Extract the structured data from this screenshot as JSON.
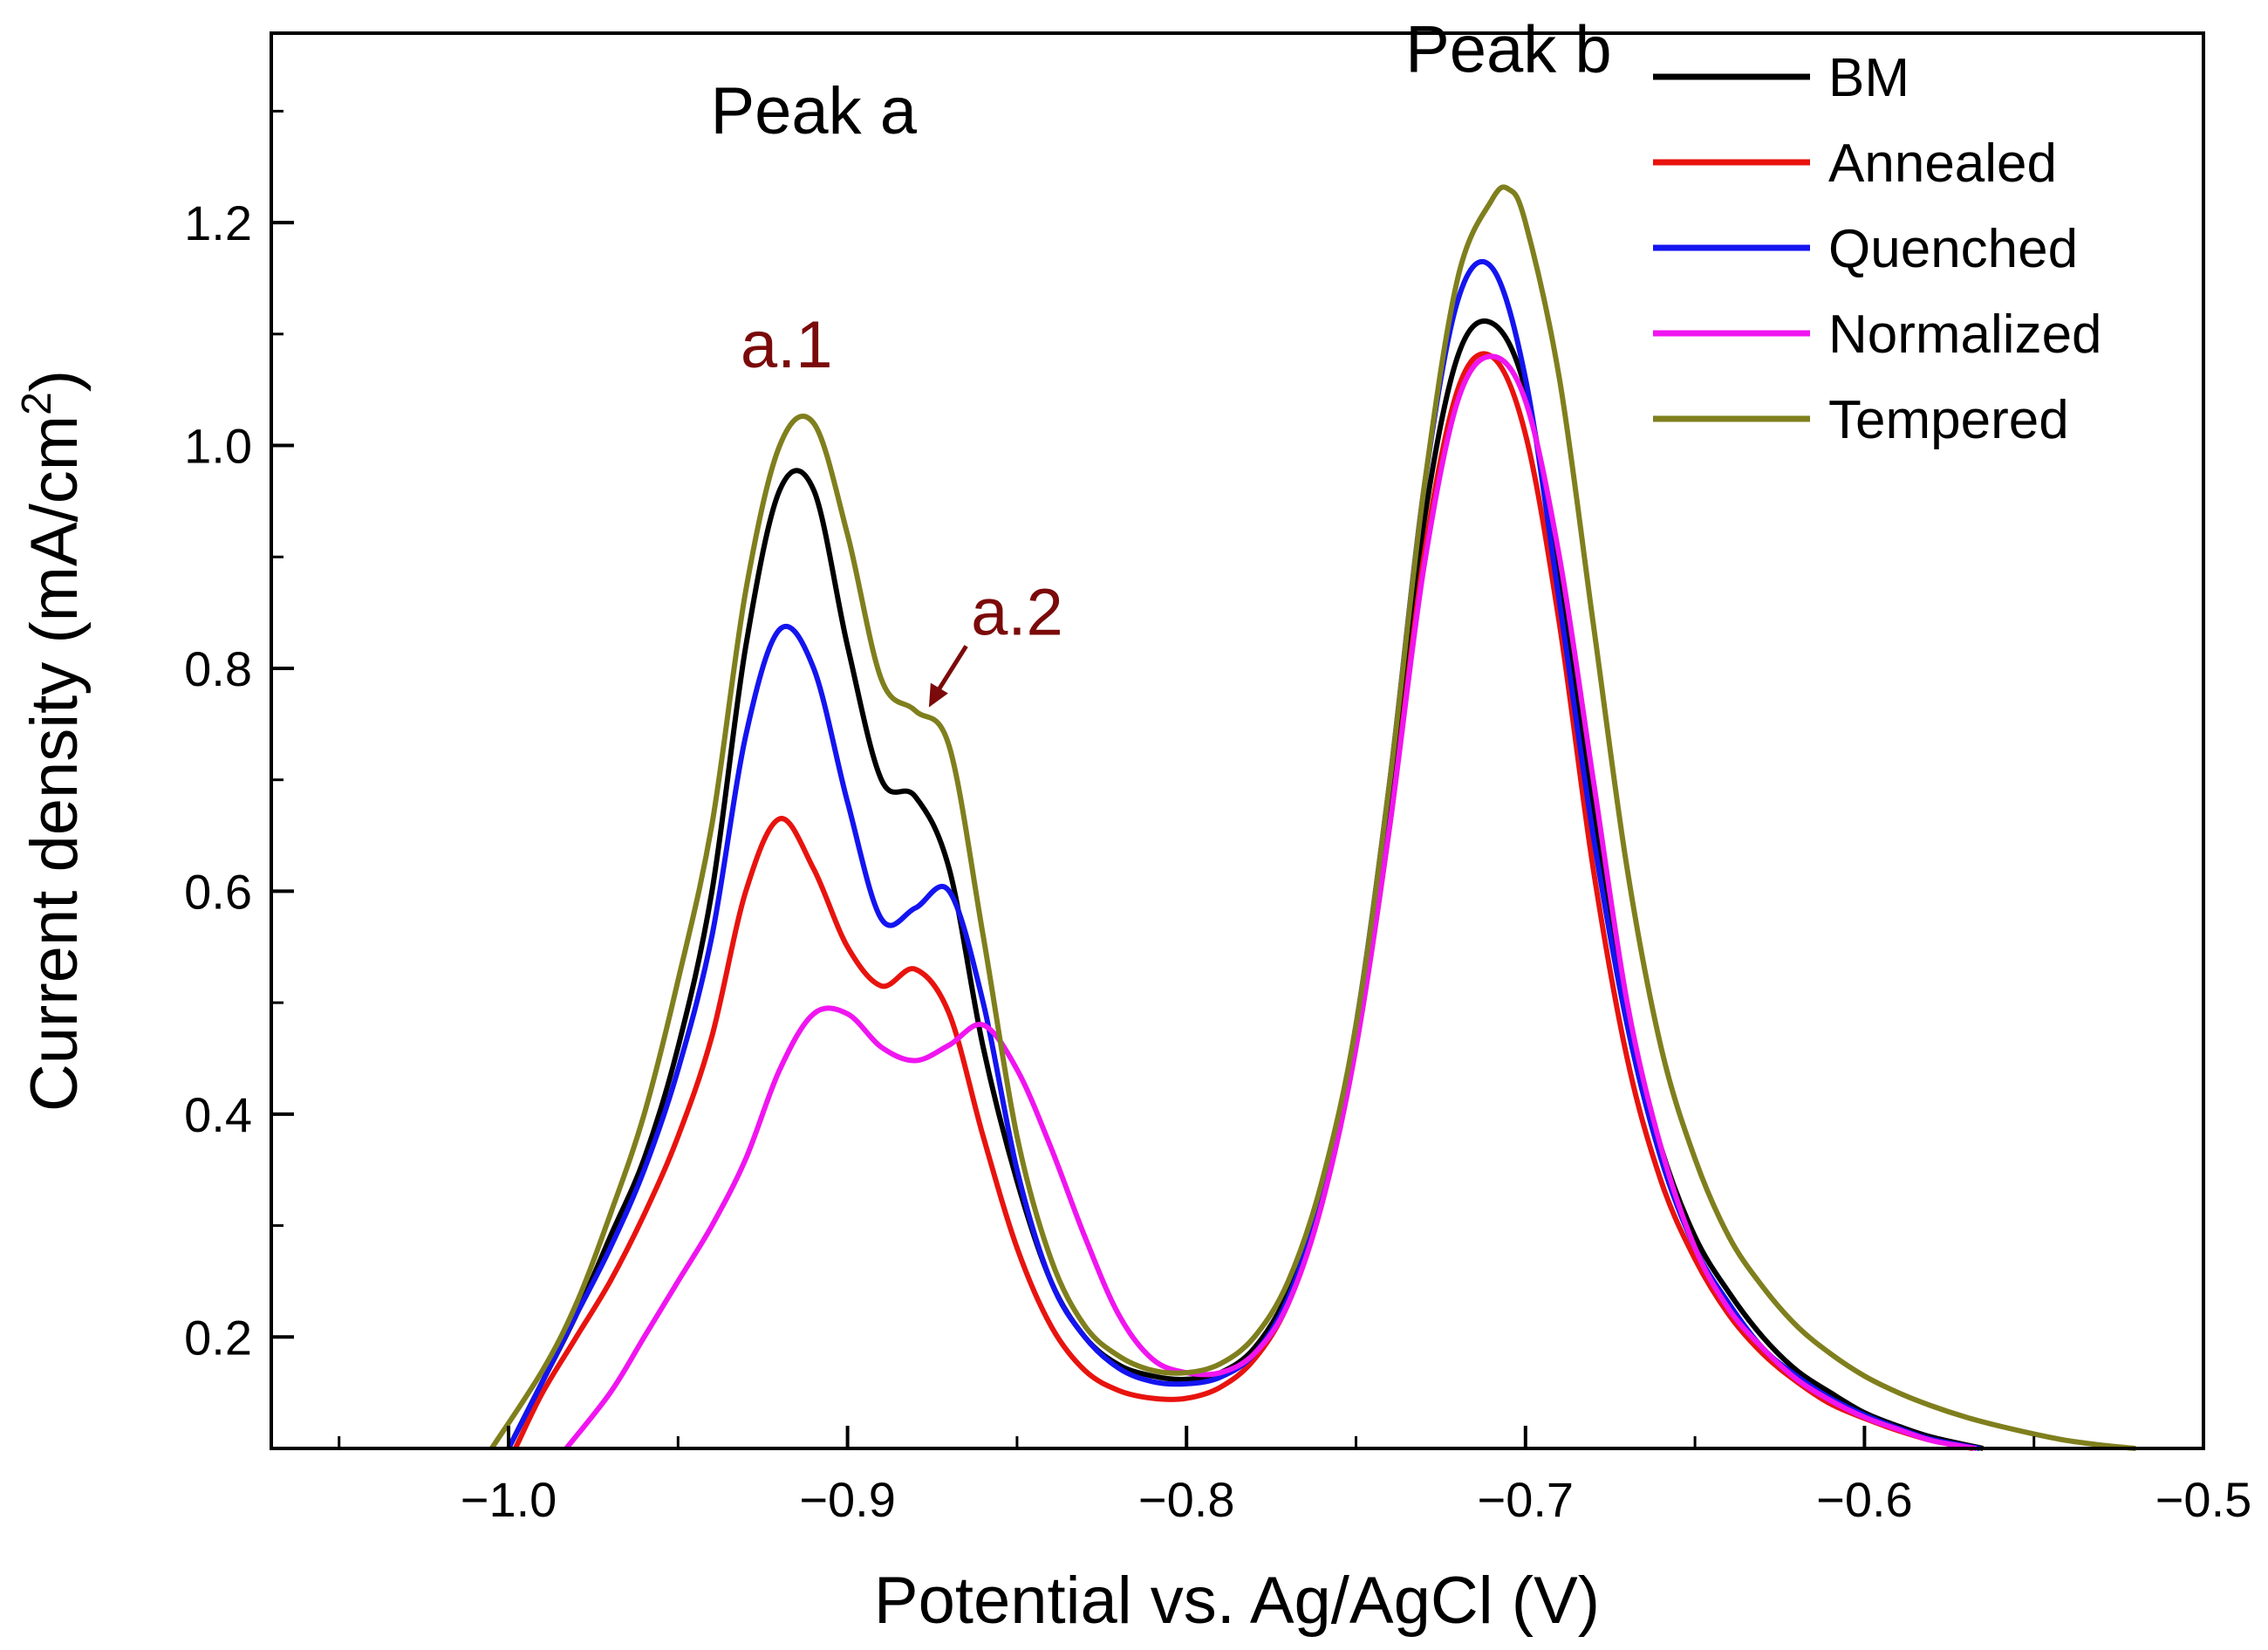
{
  "chart_data": {
    "type": "line",
    "title": "",
    "xlabel": "Potential vs. Ag/AgCl (V)",
    "ylabel_main": "Current density (mA/cm",
    "ylabel_sup": "2",
    "ylabel_close": ")",
    "xlim": [
      -1.07,
      -0.5
    ],
    "ylim": [
      0.1,
      1.37
    ],
    "x_ticks": [
      -1.0,
      -0.9,
      -0.8,
      -0.7,
      -0.6,
      -0.5
    ],
    "x_tick_labels": [
      "−1.0",
      "−0.9",
      "−0.8",
      "−0.7",
      "−0.6",
      "−0.5"
    ],
    "y_ticks": [
      0.2,
      0.4,
      0.6,
      0.8,
      1.0,
      1.2
    ],
    "y_tick_labels": [
      "0.2",
      "0.4",
      "0.6",
      "0.8",
      "1.0",
      "1.2"
    ],
    "grid": false,
    "legend_position": "top-right",
    "annotations": [
      {
        "text": "Peak a",
        "x": -0.91,
        "y": 1.28,
        "color": "#000000"
      },
      {
        "text": "Peak b",
        "x": -0.705,
        "y": 1.335,
        "color": "#000000"
      },
      {
        "text": "a.1",
        "x": -0.918,
        "y": 1.07,
        "color": "#7b0a0a"
      },
      {
        "text": "a.2",
        "x": -0.85,
        "y": 0.83,
        "color": "#7b0a0a"
      }
    ],
    "series": [
      {
        "name": "BM",
        "color": "#000000",
        "points": [
          [
            -1.0,
            0.1
          ],
          [
            -0.99,
            0.16
          ],
          [
            -0.98,
            0.22
          ],
          [
            -0.97,
            0.29
          ],
          [
            -0.96,
            0.36
          ],
          [
            -0.95,
            0.46
          ],
          [
            -0.94,
            0.6
          ],
          [
            -0.93,
            0.82
          ],
          [
            -0.92,
            0.96
          ],
          [
            -0.91,
            0.96
          ],
          [
            -0.9,
            0.82
          ],
          [
            -0.89,
            0.7
          ],
          [
            -0.88,
            0.685
          ],
          [
            -0.87,
            0.62
          ],
          [
            -0.86,
            0.46
          ],
          [
            -0.85,
            0.34
          ],
          [
            -0.84,
            0.25
          ],
          [
            -0.83,
            0.2
          ],
          [
            -0.82,
            0.175
          ],
          [
            -0.81,
            0.165
          ],
          [
            -0.8,
            0.162
          ],
          [
            -0.79,
            0.168
          ],
          [
            -0.78,
            0.19
          ],
          [
            -0.77,
            0.24
          ],
          [
            -0.76,
            0.33
          ],
          [
            -0.75,
            0.47
          ],
          [
            -0.74,
            0.68
          ],
          [
            -0.73,
            0.93
          ],
          [
            -0.72,
            1.08
          ],
          [
            -0.71,
            1.11
          ],
          [
            -0.7,
            1.05
          ],
          [
            -0.69,
            0.88
          ],
          [
            -0.68,
            0.67
          ],
          [
            -0.67,
            0.49
          ],
          [
            -0.66,
            0.37
          ],
          [
            -0.65,
            0.29
          ],
          [
            -0.64,
            0.24
          ],
          [
            -0.63,
            0.2
          ],
          [
            -0.62,
            0.17
          ],
          [
            -0.61,
            0.15
          ],
          [
            -0.6,
            0.132
          ],
          [
            -0.59,
            0.12
          ],
          [
            -0.58,
            0.11
          ],
          [
            -0.565,
            0.1
          ]
        ]
      },
      {
        "name": "Annealed",
        "color": "#e8130e",
        "points": [
          [
            -0.998,
            0.1
          ],
          [
            -0.99,
            0.15
          ],
          [
            -0.98,
            0.2
          ],
          [
            -0.97,
            0.25
          ],
          [
            -0.96,
            0.31
          ],
          [
            -0.95,
            0.38
          ],
          [
            -0.94,
            0.47
          ],
          [
            -0.93,
            0.6
          ],
          [
            -0.92,
            0.665
          ],
          [
            -0.91,
            0.62
          ],
          [
            -0.9,
            0.55
          ],
          [
            -0.89,
            0.515
          ],
          [
            -0.88,
            0.53
          ],
          [
            -0.87,
            0.49
          ],
          [
            -0.86,
            0.38
          ],
          [
            -0.85,
            0.28
          ],
          [
            -0.84,
            0.21
          ],
          [
            -0.83,
            0.17
          ],
          [
            -0.82,
            0.152
          ],
          [
            -0.81,
            0.145
          ],
          [
            -0.8,
            0.145
          ],
          [
            -0.79,
            0.155
          ],
          [
            -0.78,
            0.18
          ],
          [
            -0.77,
            0.23
          ],
          [
            -0.76,
            0.32
          ],
          [
            -0.75,
            0.46
          ],
          [
            -0.74,
            0.66
          ],
          [
            -0.73,
            0.9
          ],
          [
            -0.72,
            1.05
          ],
          [
            -0.71,
            1.08
          ],
          [
            -0.7,
            1.01
          ],
          [
            -0.69,
            0.84
          ],
          [
            -0.68,
            0.62
          ],
          [
            -0.67,
            0.45
          ],
          [
            -0.66,
            0.34
          ],
          [
            -0.65,
            0.27
          ],
          [
            -0.64,
            0.22
          ],
          [
            -0.63,
            0.185
          ],
          [
            -0.62,
            0.16
          ],
          [
            -0.61,
            0.14
          ],
          [
            -0.6,
            0.127
          ],
          [
            -0.59,
            0.116
          ],
          [
            -0.58,
            0.107
          ],
          [
            -0.568,
            0.1
          ]
        ]
      },
      {
        "name": "Quenched",
        "color": "#1414f0",
        "points": [
          [
            -1.0,
            0.1
          ],
          [
            -0.99,
            0.16
          ],
          [
            -0.98,
            0.22
          ],
          [
            -0.97,
            0.28
          ],
          [
            -0.96,
            0.35
          ],
          [
            -0.95,
            0.44
          ],
          [
            -0.94,
            0.56
          ],
          [
            -0.93,
            0.74
          ],
          [
            -0.92,
            0.835
          ],
          [
            -0.91,
            0.8
          ],
          [
            -0.9,
            0.68
          ],
          [
            -0.89,
            0.575
          ],
          [
            -0.88,
            0.585
          ],
          [
            -0.87,
            0.6
          ],
          [
            -0.86,
            0.5
          ],
          [
            -0.85,
            0.35
          ],
          [
            -0.84,
            0.25
          ],
          [
            -0.83,
            0.2
          ],
          [
            -0.82,
            0.172
          ],
          [
            -0.81,
            0.16
          ],
          [
            -0.8,
            0.158
          ],
          [
            -0.79,
            0.164
          ],
          [
            -0.78,
            0.185
          ],
          [
            -0.77,
            0.235
          ],
          [
            -0.76,
            0.33
          ],
          [
            -0.75,
            0.48
          ],
          [
            -0.74,
            0.7
          ],
          [
            -0.73,
            0.96
          ],
          [
            -0.72,
            1.13
          ],
          [
            -0.71,
            1.16
          ],
          [
            -0.7,
            1.06
          ],
          [
            -0.69,
            0.86
          ],
          [
            -0.68,
            0.65
          ],
          [
            -0.67,
            0.48
          ],
          [
            -0.66,
            0.36
          ],
          [
            -0.65,
            0.28
          ],
          [
            -0.64,
            0.23
          ],
          [
            -0.63,
            0.19
          ],
          [
            -0.62,
            0.165
          ],
          [
            -0.61,
            0.145
          ],
          [
            -0.6,
            0.13
          ],
          [
            -0.59,
            0.118
          ],
          [
            -0.58,
            0.108
          ],
          [
            -0.566,
            0.1
          ]
        ]
      },
      {
        "name": "Normalized",
        "color": "#f015f0",
        "points": [
          [
            -0.983,
            0.1
          ],
          [
            -0.97,
            0.15
          ],
          [
            -0.96,
            0.2
          ],
          [
            -0.95,
            0.25
          ],
          [
            -0.94,
            0.3
          ],
          [
            -0.93,
            0.36
          ],
          [
            -0.92,
            0.44
          ],
          [
            -0.91,
            0.49
          ],
          [
            -0.9,
            0.49
          ],
          [
            -0.89,
            0.46
          ],
          [
            -0.88,
            0.448
          ],
          [
            -0.87,
            0.462
          ],
          [
            -0.86,
            0.48
          ],
          [
            -0.85,
            0.44
          ],
          [
            -0.84,
            0.37
          ],
          [
            -0.83,
            0.29
          ],
          [
            -0.82,
            0.22
          ],
          [
            -0.81,
            0.18
          ],
          [
            -0.8,
            0.168
          ],
          [
            -0.79,
            0.168
          ],
          [
            -0.78,
            0.185
          ],
          [
            -0.77,
            0.23
          ],
          [
            -0.76,
            0.32
          ],
          [
            -0.75,
            0.46
          ],
          [
            -0.74,
            0.66
          ],
          [
            -0.73,
            0.89
          ],
          [
            -0.72,
            1.04
          ],
          [
            -0.71,
            1.08
          ],
          [
            -0.7,
            1.04
          ],
          [
            -0.69,
            0.9
          ],
          [
            -0.68,
            0.7
          ],
          [
            -0.67,
            0.5
          ],
          [
            -0.66,
            0.37
          ],
          [
            -0.65,
            0.28
          ],
          [
            -0.64,
            0.225
          ],
          [
            -0.63,
            0.19
          ],
          [
            -0.62,
            0.162
          ],
          [
            -0.61,
            0.143
          ],
          [
            -0.6,
            0.128
          ],
          [
            -0.59,
            0.117
          ],
          [
            -0.58,
            0.107
          ],
          [
            -0.567,
            0.1
          ]
        ]
      },
      {
        "name": "Tempered",
        "color": "#7f7f1e",
        "points": [
          [
            -1.005,
            0.1
          ],
          [
            -0.99,
            0.17
          ],
          [
            -0.98,
            0.23
          ],
          [
            -0.97,
            0.31
          ],
          [
            -0.96,
            0.4
          ],
          [
            -0.95,
            0.52
          ],
          [
            -0.94,
            0.66
          ],
          [
            -0.93,
            0.87
          ],
          [
            -0.92,
            1.0
          ],
          [
            -0.91,
            1.02
          ],
          [
            -0.9,
            0.92
          ],
          [
            -0.89,
            0.79
          ],
          [
            -0.88,
            0.762
          ],
          [
            -0.87,
            0.73
          ],
          [
            -0.86,
            0.56
          ],
          [
            -0.85,
            0.38
          ],
          [
            -0.84,
            0.27
          ],
          [
            -0.83,
            0.21
          ],
          [
            -0.82,
            0.183
          ],
          [
            -0.81,
            0.17
          ],
          [
            -0.8,
            0.168
          ],
          [
            -0.79,
            0.176
          ],
          [
            -0.78,
            0.2
          ],
          [
            -0.77,
            0.25
          ],
          [
            -0.76,
            0.34
          ],
          [
            -0.75,
            0.48
          ],
          [
            -0.74,
            0.7
          ],
          [
            -0.73,
            0.96
          ],
          [
            -0.72,
            1.15
          ],
          [
            -0.71,
            1.22
          ],
          [
            -0.705,
            1.23
          ],
          [
            -0.7,
            1.2
          ],
          [
            -0.69,
            1.06
          ],
          [
            -0.68,
            0.84
          ],
          [
            -0.67,
            0.62
          ],
          [
            -0.66,
            0.46
          ],
          [
            -0.65,
            0.36
          ],
          [
            -0.64,
            0.29
          ],
          [
            -0.63,
            0.245
          ],
          [
            -0.62,
            0.21
          ],
          [
            -0.61,
            0.185
          ],
          [
            -0.6,
            0.165
          ],
          [
            -0.59,
            0.15
          ],
          [
            -0.58,
            0.138
          ],
          [
            -0.57,
            0.128
          ],
          [
            -0.56,
            0.12
          ],
          [
            -0.55,
            0.113
          ],
          [
            -0.54,
            0.107
          ],
          [
            -0.53,
            0.103
          ],
          [
            -0.52,
            0.1
          ]
        ]
      }
    ]
  }
}
